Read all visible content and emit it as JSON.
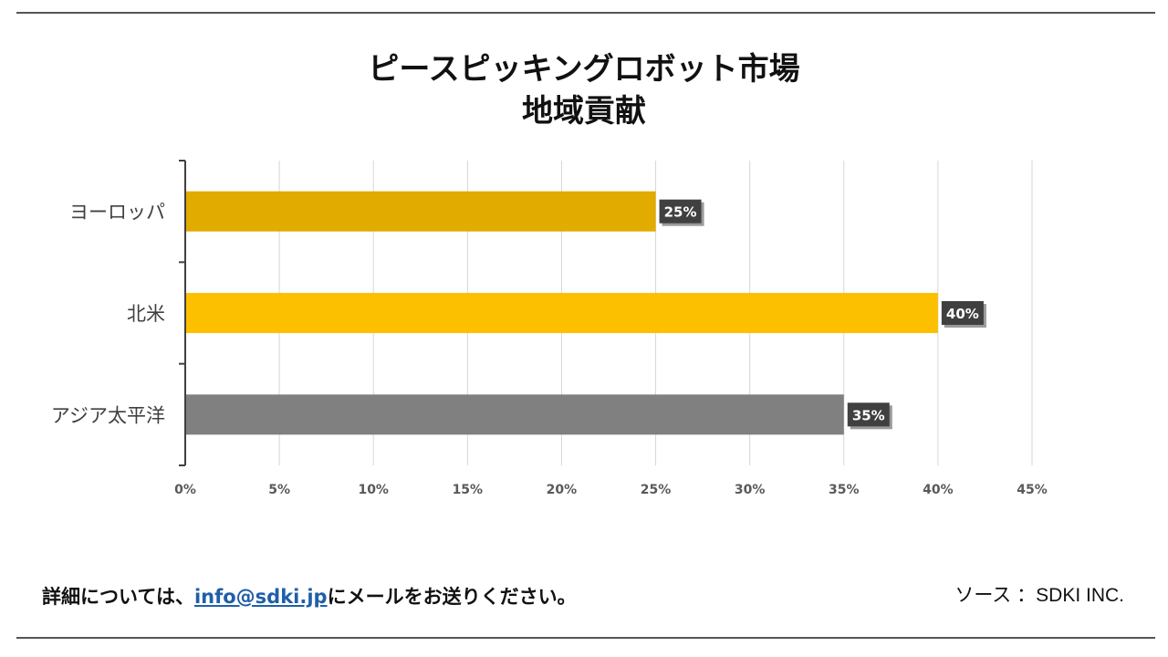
{
  "footer": {
    "prefix": "詳細については、",
    "email": "info@sdki.jp",
    "suffix": "にメールをお送りください。"
  },
  "source": {
    "label": "ソース",
    "value": "：SDKI INC."
  },
  "chart_data": {
    "type": "bar",
    "orientation": "horizontal",
    "title": "ピースピッキングロボット市場",
    "subtitle": "地域貢献",
    "categories": [
      "ヨーロッパ",
      "北米",
      "アジア太平洋"
    ],
    "values": [
      25,
      40,
      35
    ],
    "value_labels": [
      "25%",
      "40%",
      "35%"
    ],
    "colors": [
      "#e2ab00",
      "#fdc000",
      "#808080"
    ],
    "xlim": [
      0,
      45
    ],
    "xticks": [
      0,
      5,
      10,
      15,
      20,
      25,
      30,
      35,
      40,
      45
    ],
    "xtick_labels": [
      "0%",
      "5%",
      "10%",
      "15%",
      "20%",
      "25%",
      "30%",
      "35%",
      "40%",
      "45%"
    ],
    "grid": true,
    "xlabel": "",
    "ylabel": ""
  }
}
